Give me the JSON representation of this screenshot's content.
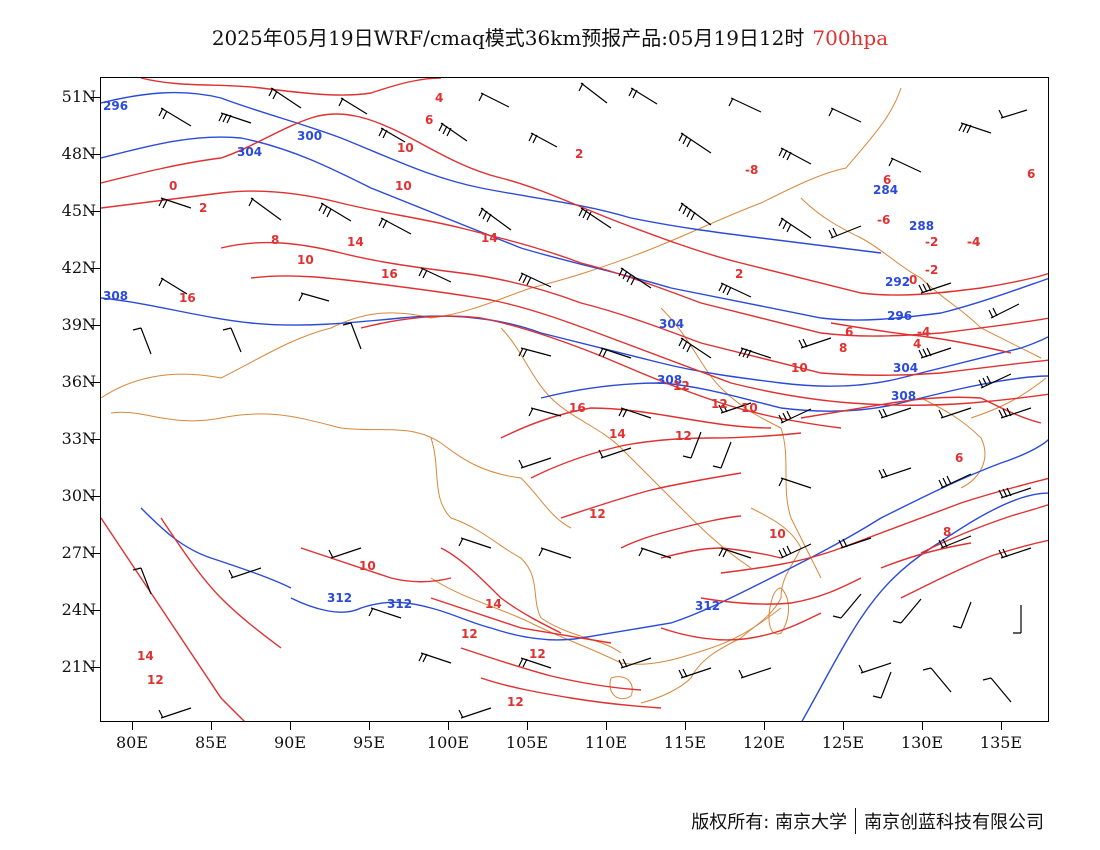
{
  "title": {
    "main": "2025年05月19日WRF/cmaq模式36km预报产品:05月19日12时",
    "level": "700hpa"
  },
  "colors": {
    "temperature": "#e03030",
    "height": "#2a4bd8",
    "border": "#d9873a",
    "wind": "#000000"
  },
  "lat_labels": [
    "51N",
    "48N",
    "45N",
    "42N",
    "39N",
    "36N",
    "33N",
    "30N",
    "27N",
    "24N",
    "21N"
  ],
  "lon_labels": [
    "80E",
    "85E",
    "90E",
    "95E",
    "100E",
    "105E",
    "110E",
    "115E",
    "120E",
    "125E",
    "130E",
    "135E"
  ],
  "height_labels": [
    "296",
    "300",
    "304",
    "308",
    "304",
    "308",
    "312",
    "312",
    "312",
    "284",
    "288",
    "292",
    "296",
    "304",
    "308"
  ],
  "temp_labels": [
    "0",
    "2",
    "4",
    "6",
    "8",
    "10",
    "14",
    "16",
    "10",
    "2",
    "14",
    "16",
    "16",
    "14",
    "12",
    "12",
    "10",
    "10",
    "8",
    "6",
    "4",
    "2",
    "0",
    "-2",
    "-4",
    "-6",
    "-8",
    "6",
    "6",
    "10",
    "12",
    "14",
    "12",
    "12",
    "12",
    "10",
    "12",
    "14",
    "12",
    "10",
    "8",
    "6",
    "-2",
    "-4",
    "-4"
  ],
  "footer": {
    "copyright": "版权所有: 南京大学",
    "company": "南京创蓝科技有限公司"
  }
}
